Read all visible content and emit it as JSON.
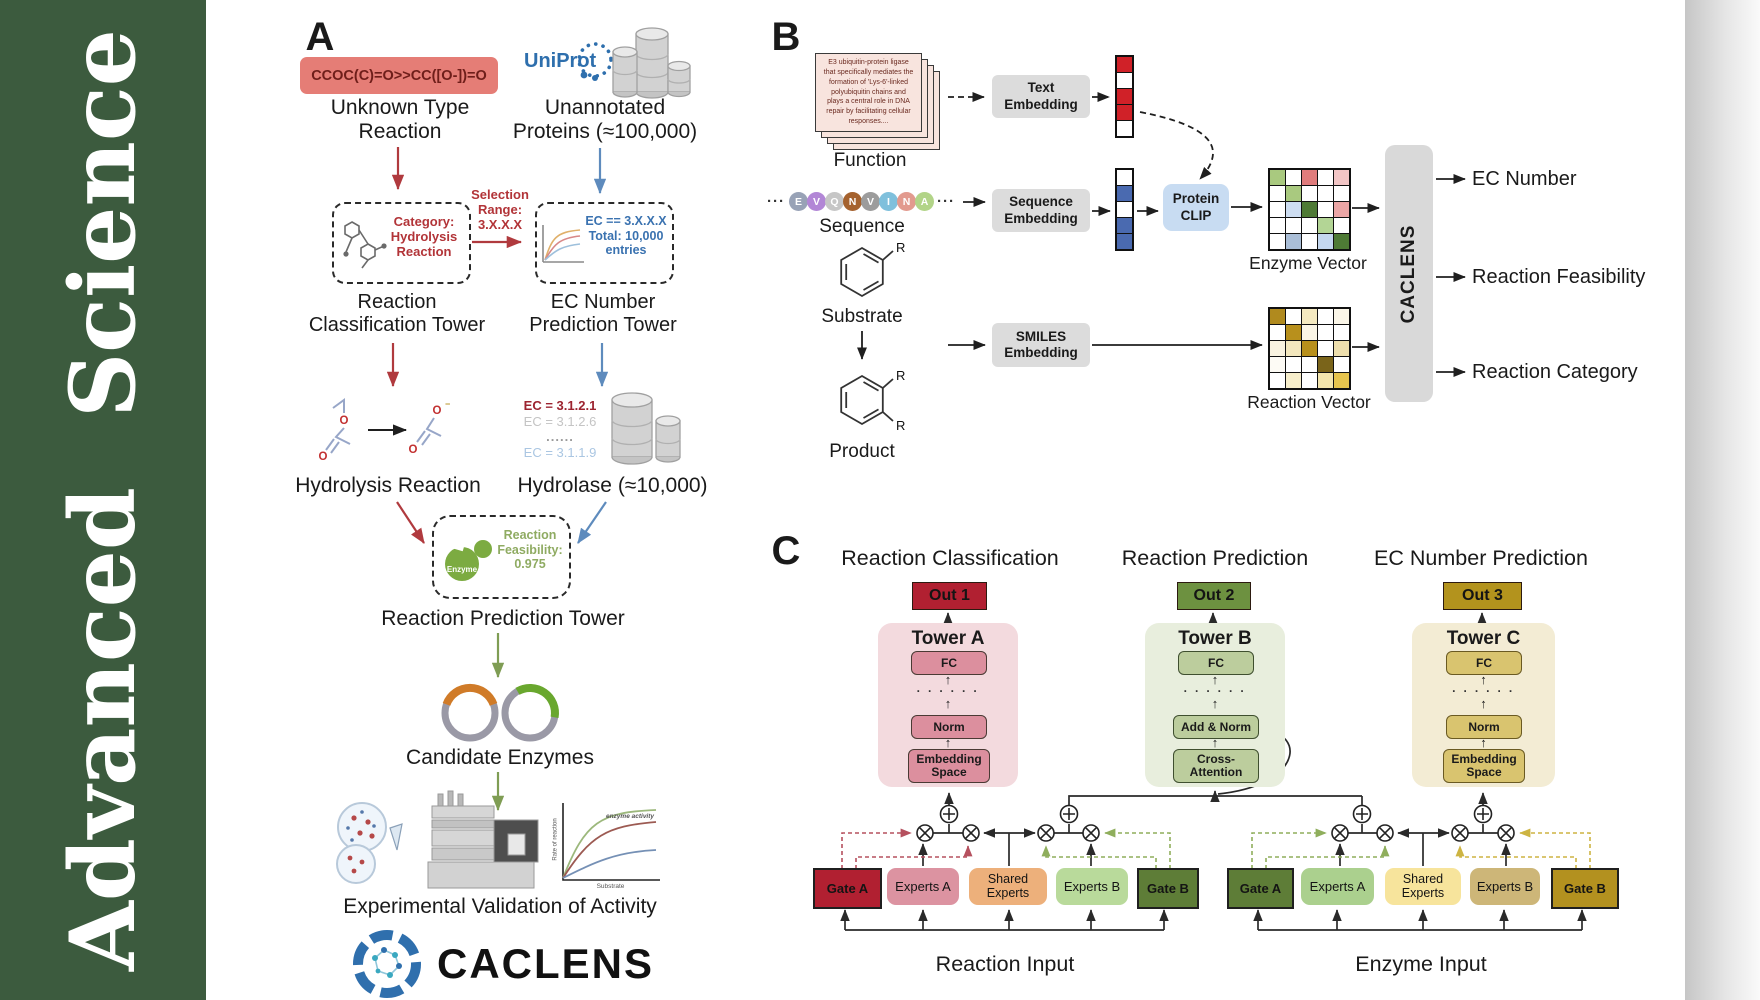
{
  "sidebar": {
    "journal": "Advanced  Science",
    "bg_color": "#3c5b3e"
  },
  "panel_a": {
    "label": "A",
    "smiles": "CCOC(C)=O>>CC([O-])=O",
    "unknown_type": "Unknown Type\nReaction",
    "uniprot": "UniProt",
    "unannotated": "Unannotated\nProteins (≈100,000)",
    "category": "Category:\nHydrolysis\nReaction",
    "selection": "Selection\nRange:\n3.X.X.X",
    "ec_filter": "EC == 3.X.X.X\nTotal: 10,000\nentries",
    "tower_classification": "Reaction\nClassification Tower",
    "tower_ec": "EC Number\nPrediction Tower",
    "hydrolysis": "Hydrolysis Reaction",
    "ec_list": [
      "EC = 3.1.2.1",
      "EC = 3.1.2.6",
      "......",
      "EC = 3.1.1.9"
    ],
    "hydrolase": "Hydrolase (≈10,000)",
    "enzyme_icon_label": "Enzyme",
    "feasibility": "Reaction\nFeasibility:\n0.975",
    "tower_prediction": "Reaction Prediction Tower",
    "candidates": "Candidate Enzymes",
    "validation": "Experimental Validation of Activity",
    "brand": "CACLENS",
    "mini_chart": {
      "curve_label": "enzyme activity",
      "ylabel": "Rate of reaction",
      "xlabel": "Substrate"
    }
  },
  "panel_b": {
    "label": "B",
    "function_text": "E3 ubiquitin-protein ligase that specifically mediates the formation of 'Lys-6'-linked polyubiquitin chains and plays a central role in DNA repair by facilitating cellular responses....",
    "function": "Function",
    "ellipsis": "···",
    "sequence_letters": [
      {
        "ch": "E",
        "color": "#98a2b6"
      },
      {
        "ch": "V",
        "color": "#b286d6"
      },
      {
        "ch": "Q",
        "color": "#c6c6c6"
      },
      {
        "ch": "N",
        "color": "#a5622e"
      },
      {
        "ch": "V",
        "color": "#9c9c9c"
      },
      {
        "ch": "I",
        "color": "#7fc0dc"
      },
      {
        "ch": "N",
        "color": "#e29a8e"
      },
      {
        "ch": "A",
        "color": "#b2d488"
      }
    ],
    "sequence": "Sequence",
    "substrate": "Substrate",
    "product": "Product",
    "r_group": "R",
    "text_embedding": "Text\nEmbedding",
    "sequence_embedding": "Sequence\nEmbedding",
    "smiles_embedding": "SMILES\nEmbedding",
    "protein_clip": "Protein\nCLIP",
    "text_vec": [
      "#d02128",
      "#ffffff",
      "#d02128",
      "#d02128",
      "#ffffff"
    ],
    "seq_vec": [
      "#ffffff",
      "#4a6ab0",
      "#ffffff",
      "#4a6ab0",
      "#4a6ab0"
    ],
    "enzyme_grid": [
      "#a9c97f",
      "#ffffff",
      "#e07c7c",
      "#ffffff",
      "#f3c6c6",
      "#ffffff",
      "#a9c97f",
      "#ffffff",
      "#ffffff",
      "#ffffff",
      "#ffffff",
      "#cdddf1",
      "#4e7a35",
      "#ffffff",
      "#eba6a6",
      "#ffffff",
      "#ffffff",
      "#ffffff",
      "#b3d595",
      "#ffffff",
      "#ffffff",
      "#aabed7",
      "#ffffff",
      "#c4d7ef",
      "#4e7a35"
    ],
    "reaction_grid": [
      "#b08a1e",
      "#ffffff",
      "#f4e9c0",
      "#ffffff",
      "#fbf6e8",
      "#ffffff",
      "#b8901c",
      "#faf5e6",
      "#ffffff",
      "#ffffff",
      "#f9f3e0",
      "#f3e7bd",
      "#b8901c",
      "#ffffff",
      "#eedfad",
      "#fdfbf5",
      "#ffffff",
      "#ffffff",
      "#7a641a",
      "#ffffff",
      "#ffffff",
      "#f7eecb",
      "#ffffff",
      "#f3e5ad",
      "#e6c44e"
    ],
    "enzyme_vector": "Enzyme Vector",
    "reaction_vector": "Reaction Vector",
    "caclens": "CACLENS",
    "out_ec": "EC Number",
    "out_feasibility": "Reaction Feasibility",
    "out_category": "Reaction Category"
  },
  "panel_c": {
    "label": "C",
    "headers": [
      "Reaction Classification",
      "Reaction Prediction",
      "EC Number Prediction"
    ],
    "outs": [
      "Out 1",
      "Out 2",
      "Out 3"
    ],
    "dots": "· · · · · ·",
    "towers": [
      {
        "title": "Tower A",
        "fc": "FC",
        "mid": "Norm",
        "bottom": "Embedding\nSpace"
      },
      {
        "title": "Tower B",
        "fc": "FC",
        "mid": "Add & Norm",
        "bottom": "Cross-\nAttention"
      },
      {
        "title": "Tower C",
        "fc": "FC",
        "mid": "Norm",
        "bottom": "Embedding\nSpace"
      }
    ],
    "moe_left": {
      "gate_a": "Gate A",
      "experts_a": "Experts A",
      "shared": "Shared\nExperts",
      "experts_b": "Experts B",
      "gate_b": "Gate B",
      "input": "Reaction Input"
    },
    "moe_right": {
      "gate_a": "Gate A",
      "experts_a": "Experts A",
      "shared": "Shared\nExperts",
      "experts_b": "Experts B",
      "gate_b": "Gate B",
      "input": "Enzyme Input"
    },
    "colors": {
      "out1": "#b12031",
      "out2": "#6d9140",
      "out3": "#b3931d",
      "tower_a_bg": "#f3dade",
      "tower_b_bg": "#e8eedd",
      "tower_c_bg": "#f3ecd4",
      "gate_red": "#b12031",
      "gate_dark_green": "#5e7d37",
      "gate_gold": "#b3911f"
    }
  }
}
